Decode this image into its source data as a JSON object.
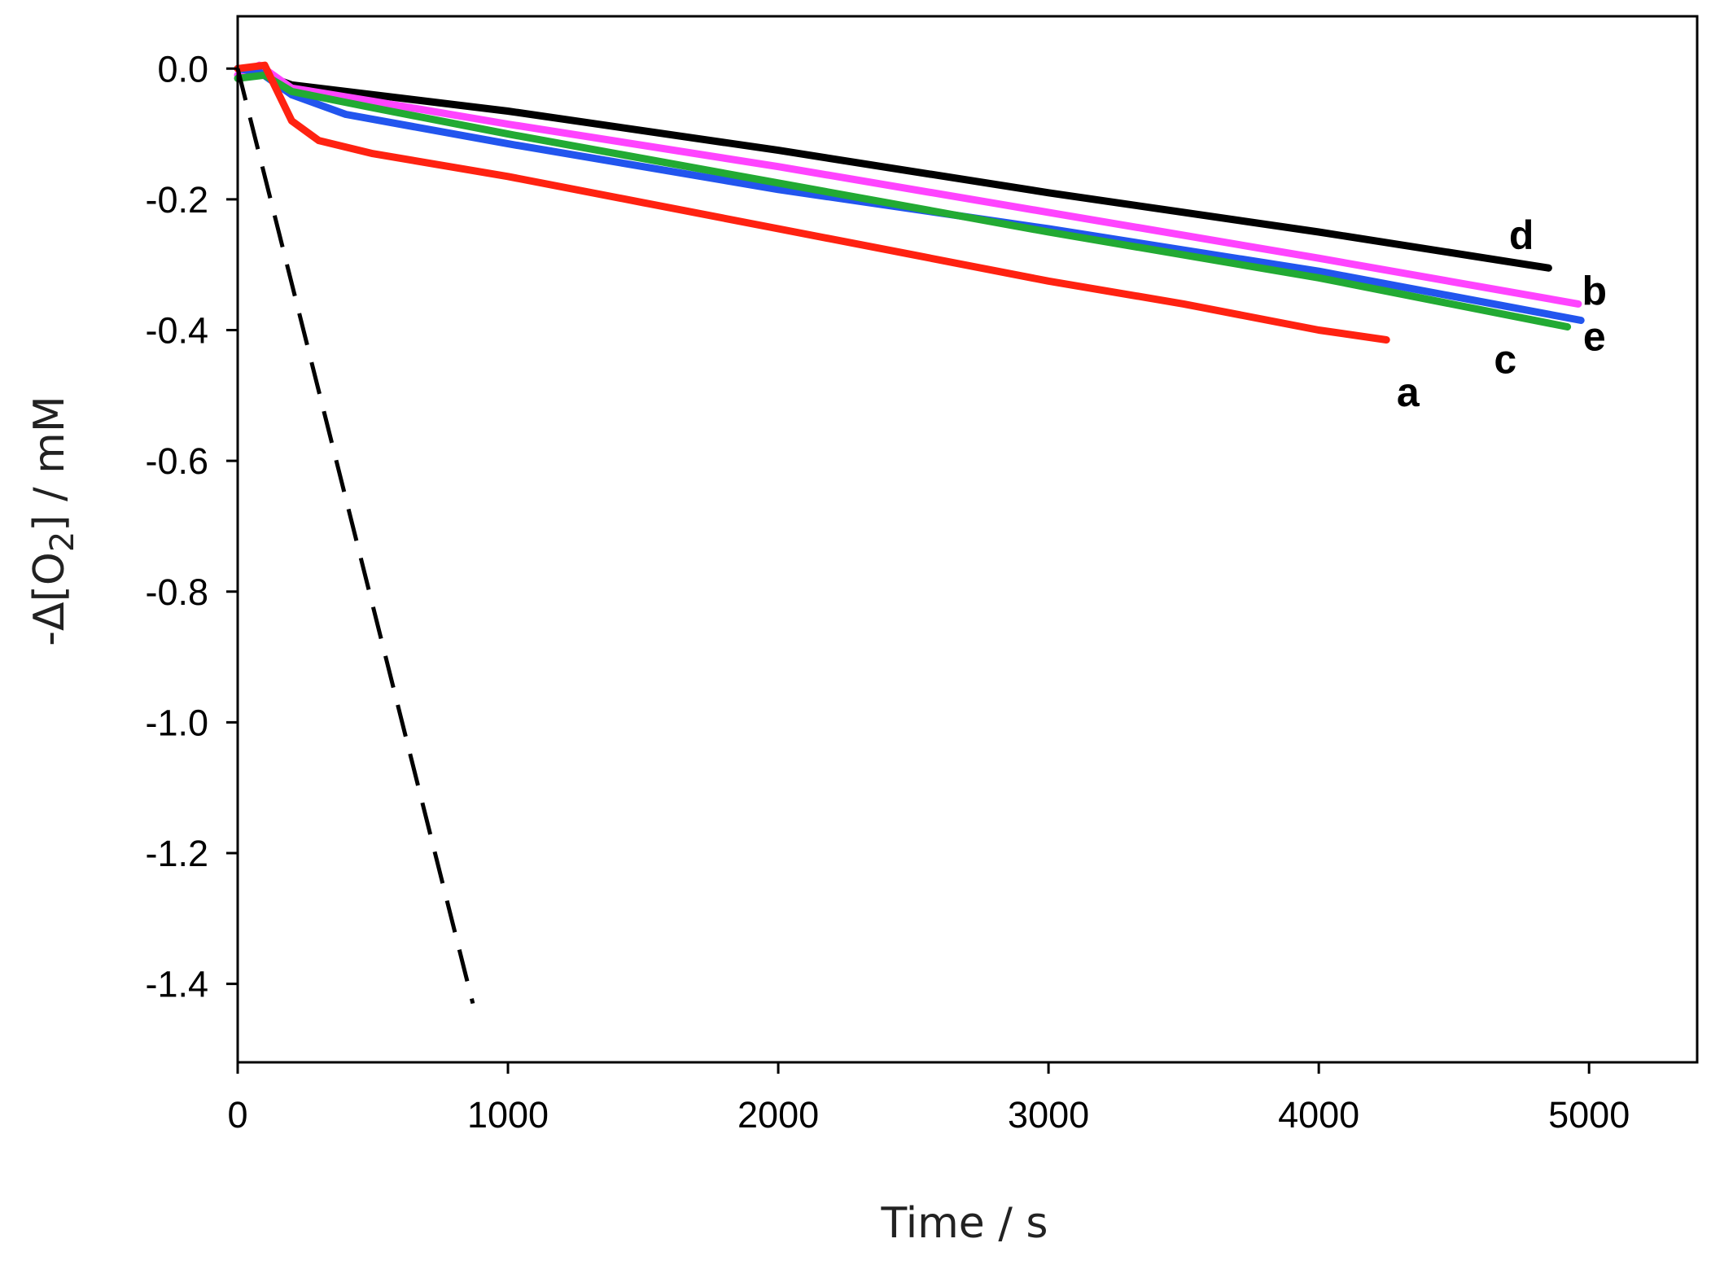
{
  "chart_data": {
    "type": "line",
    "xlabel": "Time / s",
    "ylabel_parts": {
      "prefix": "-Δ[O",
      "sub": "2",
      "suffix": "] / mM"
    },
    "xlim": [
      0,
      5400
    ],
    "ylim": [
      -1.52,
      0.08
    ],
    "xticks": [
      0,
      1000,
      2000,
      3000,
      4000,
      5000
    ],
    "xtick_labels": [
      "0",
      "1000",
      "2000",
      "3000",
      "4000",
      "5000"
    ],
    "yticks": [
      0.0,
      -0.2,
      -0.4,
      -0.6,
      -0.8,
      -1.0,
      -1.2,
      -1.4
    ],
    "ytick_labels": [
      "0.0",
      "-0.2",
      "-0.4",
      "-0.6",
      "-0.8",
      "-1.0",
      "-1.2",
      "-1.4"
    ],
    "grid": false,
    "series": [
      {
        "label": "d",
        "color": "#000000",
        "style": "solid",
        "x": [
          0,
          100,
          200,
          500,
          1000,
          2000,
          3000,
          4000,
          4850
        ],
        "y": [
          0.0,
          -0.01,
          -0.025,
          -0.04,
          -0.065,
          -0.125,
          -0.19,
          -0.25,
          -0.305
        ]
      },
      {
        "label": "b",
        "color": "#ff44ff",
        "style": "solid",
        "x": [
          0,
          80,
          200,
          500,
          1000,
          2000,
          3000,
          4000,
          4960
        ],
        "y": [
          -0.01,
          0.005,
          -0.03,
          -0.05,
          -0.085,
          -0.15,
          -0.22,
          -0.29,
          -0.36
        ]
      },
      {
        "label": "e",
        "color": "#2255ee",
        "style": "solid",
        "x": [
          0,
          80,
          200,
          400,
          1000,
          2000,
          3000,
          4000,
          4970
        ],
        "y": [
          0.0,
          -0.005,
          -0.04,
          -0.07,
          -0.115,
          -0.185,
          -0.245,
          -0.31,
          -0.385
        ]
      },
      {
        "label": "c",
        "color": "#22aa33",
        "style": "solid",
        "x": [
          0,
          100,
          200,
          500,
          1000,
          2000,
          3000,
          4000,
          4920
        ],
        "y": [
          -0.015,
          -0.01,
          -0.035,
          -0.06,
          -0.1,
          -0.175,
          -0.25,
          -0.32,
          -0.395
        ]
      },
      {
        "label": "a",
        "color": "#ff2211",
        "style": "solid",
        "x": [
          0,
          100,
          200,
          300,
          500,
          1000,
          1500,
          2000,
          2500,
          3000,
          3500,
          4000,
          4250
        ],
        "y": [
          0.0,
          0.005,
          -0.08,
          -0.11,
          -0.13,
          -0.165,
          -0.205,
          -0.245,
          -0.285,
          -0.325,
          -0.36,
          -0.4,
          -0.415
        ]
      },
      {
        "label": "",
        "color": "#000000",
        "style": "dashed",
        "x": [
          0,
          870
        ],
        "y": [
          0.0,
          -1.43
        ]
      }
    ],
    "annotations": [
      {
        "text": "d",
        "x": 4750,
        "y": -0.255
      },
      {
        "text": "b",
        "x": 5020,
        "y": -0.34
      },
      {
        "text": "e",
        "x": 5020,
        "y": -0.41
      },
      {
        "text": "c",
        "x": 4690,
        "y": -0.445
      },
      {
        "text": "a",
        "x": 4330,
        "y": -0.495
      }
    ]
  }
}
